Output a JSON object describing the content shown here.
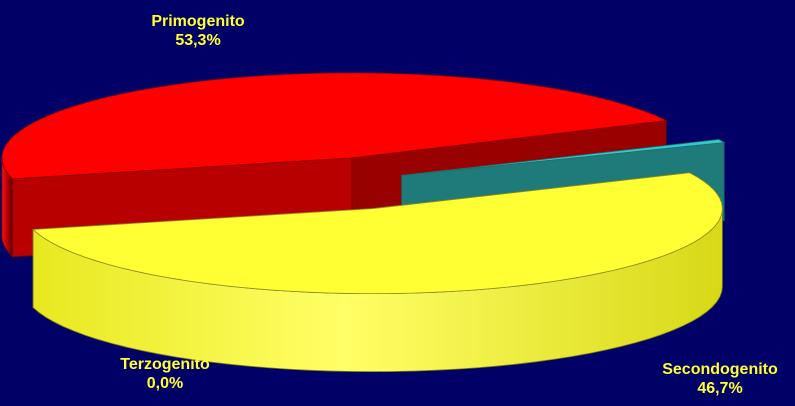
{
  "chart_data": {
    "type": "pie",
    "style": "3d-exploded",
    "slices": [
      {
        "label": "Primogenito",
        "value_label": "53,3%",
        "value": 53.3,
        "color": "#FFFF33"
      },
      {
        "label": "Secondogenito",
        "value_label": "46,7%",
        "value": 46.7,
        "color": "#FF0000"
      },
      {
        "label": "Terzogenito",
        "value_label": "0,0%",
        "value": 0.0,
        "color": "#33CCCC"
      }
    ],
    "label_color": "#FFFF33",
    "background": "#000066"
  }
}
